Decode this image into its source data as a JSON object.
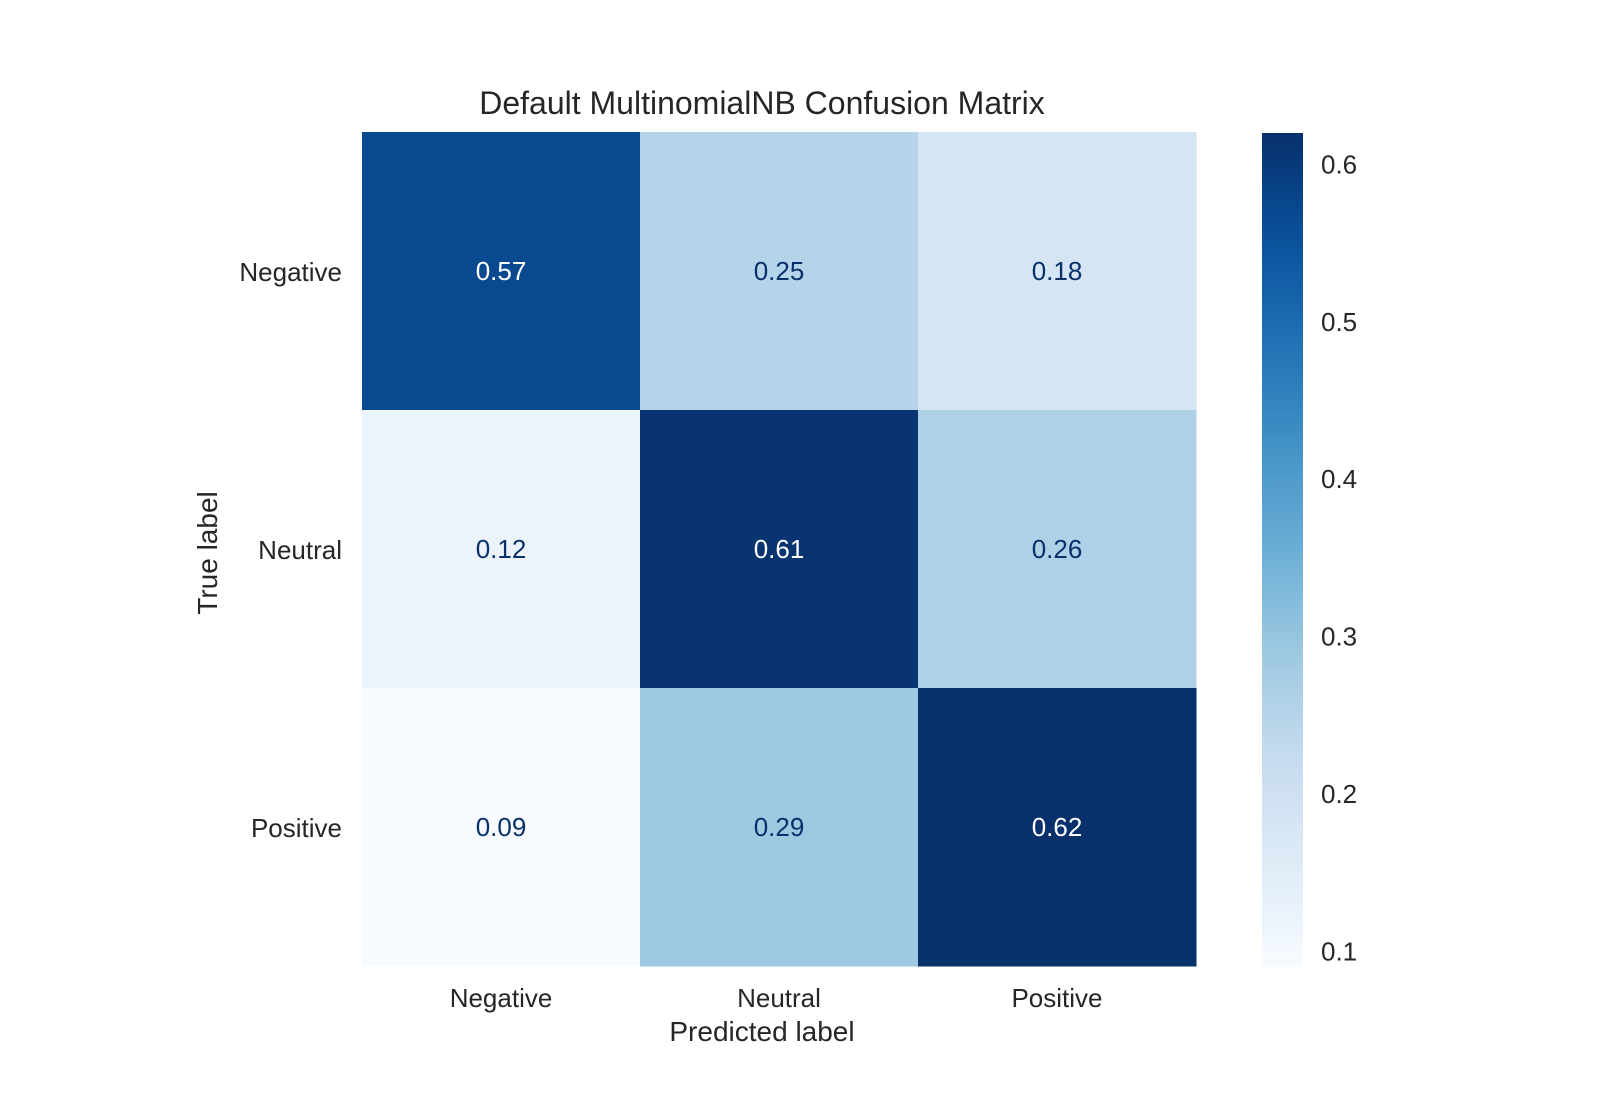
{
  "chart_data": {
    "type": "heatmap",
    "title": "Default MultinomialNB Confusion Matrix",
    "xlabel": "Predicted label",
    "ylabel": "True label",
    "x_categories": [
      "Negative",
      "Neutral",
      "Positive"
    ],
    "y_categories": [
      "Negative",
      "Neutral",
      "Positive"
    ],
    "values": [
      [
        0.57,
        0.25,
        0.18
      ],
      [
        0.12,
        0.61,
        0.26
      ],
      [
        0.09,
        0.29,
        0.62
      ]
    ],
    "value_labels": [
      [
        "0.57",
        "0.25",
        "0.18"
      ],
      [
        "0.12",
        "0.61",
        "0.26"
      ],
      [
        "0.09",
        "0.29",
        "0.62"
      ]
    ],
    "colormap": "Blues",
    "colorbar": {
      "range": [
        0.09,
        0.62
      ],
      "ticks": [
        0.1,
        0.2,
        0.3,
        0.4,
        0.5,
        0.6
      ],
      "tick_labels": [
        "0.1",
        "0.2",
        "0.3",
        "0.4",
        "0.5",
        "0.6"
      ]
    },
    "grid": false
  },
  "colors": {
    "text": "#262626",
    "label_dark": "#08306b",
    "label_light": "#ffffff"
  }
}
